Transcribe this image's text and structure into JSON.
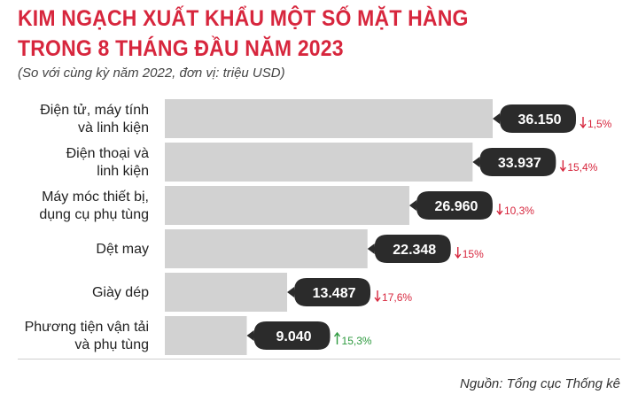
{
  "header": {
    "title_line1": "KIM NGẠCH XUẤT KHẨU MỘT SỐ MẶT HÀNG",
    "title_line2": "TRONG 8 THÁNG ĐẦU NĂM 2023",
    "subtitle": "(So với cùng kỳ năm 2022, đơn vị: triệu USD)"
  },
  "source": "Nguồn: Tổng cục Thống kê",
  "colors": {
    "title": "#d7263d",
    "bar": "#d2d2d2",
    "label_bg": "#2b2b2b",
    "decrease": "#d7263d",
    "increase": "#2e9a3f"
  },
  "chart_data": {
    "type": "bar",
    "orientation": "horizontal",
    "title": "KIM NGẠCH XUẤT KHẨU MỘT SỐ MẶT HÀNG TRONG 8 THÁNG ĐẦU NĂM 2023",
    "subtitle": "(So với cùng kỳ năm 2022, đơn vị: triệu USD)",
    "categories": [
      [
        "Điện tử, máy tính",
        "và linh kiện"
      ],
      [
        "Điện thoại và",
        "linh kiện"
      ],
      [
        "Máy móc thiết bị,",
        "dụng cụ phụ tùng"
      ],
      [
        "Dệt may"
      ],
      [
        "Giày dép"
      ],
      [
        "Phương tiện vận tải",
        "và phụ tùng"
      ]
    ],
    "values": [
      36150,
      33937,
      26960,
      22348,
      13487,
      9040
    ],
    "value_labels": [
      "36.150",
      "33.937",
      "26.960",
      "22.348",
      "13.487",
      "9.040"
    ],
    "changes": [
      {
        "direction": "down",
        "label": "1,5%"
      },
      {
        "direction": "down",
        "label": "15,4%"
      },
      {
        "direction": "down",
        "label": "10,3%"
      },
      {
        "direction": "down",
        "label": "15%"
      },
      {
        "direction": "down",
        "label": "17,6%"
      },
      {
        "direction": "up",
        "label": "15,3%"
      }
    ],
    "xlim": [
      0,
      36150
    ],
    "grid": false,
    "legend": "none"
  }
}
